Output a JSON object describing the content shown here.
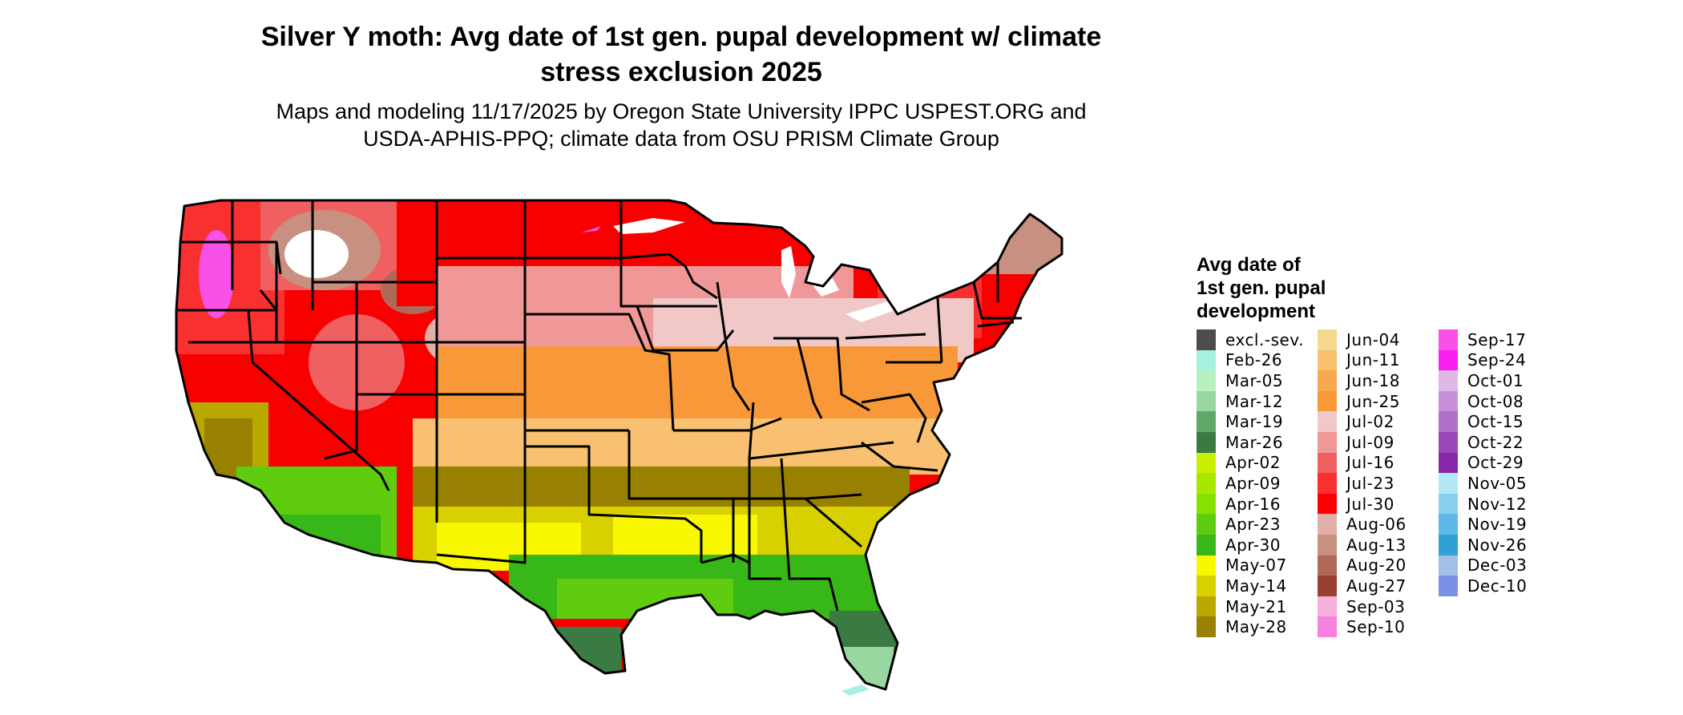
{
  "title": {
    "line1": "Silver Y moth: Avg date of 1st gen. pupal development w/ climate",
    "line2": "stress exclusion 2025"
  },
  "subtitle": {
    "line1": "Maps and modeling 11/17/2025 by Oregon State University IPPC USPEST.ORG and",
    "line2": "USDA-APHIS-PPQ; climate data from OSU PRISM Climate Group"
  },
  "legend": {
    "title_lines": [
      "Avg date of",
      "1st gen. pupal",
      "development"
    ],
    "items": [
      {
        "label": "excl.-sev.",
        "color": "#4d4d4d"
      },
      {
        "label": "Feb-26",
        "color": "#a8f0e0"
      },
      {
        "label": "Mar-05",
        "color": "#b8f0c0"
      },
      {
        "label": "Mar-12",
        "color": "#98d8a0"
      },
      {
        "label": "Mar-19",
        "color": "#60a868"
      },
      {
        "label": "Mar-26",
        "color": "#3c7a44"
      },
      {
        "label": "Apr-02",
        "color": "#c8f000"
      },
      {
        "label": "Apr-09",
        "color": "#a8e800"
      },
      {
        "label": "Apr-16",
        "color": "#88e000"
      },
      {
        "label": "Apr-23",
        "color": "#60cc10"
      },
      {
        "label": "Apr-30",
        "color": "#38b818"
      },
      {
        "label": "May-07",
        "color": "#f8f800"
      },
      {
        "label": "May-14",
        "color": "#d8d000"
      },
      {
        "label": "May-21",
        "color": "#b8a800"
      },
      {
        "label": "May-28",
        "color": "#988000"
      },
      {
        "label": "Jun-04",
        "color": "#f8d890"
      },
      {
        "label": "Jun-11",
        "color": "#f8c070"
      },
      {
        "label": "Jun-18",
        "color": "#f8a850"
      },
      {
        "label": "Jun-25",
        "color": "#f89838"
      },
      {
        "label": "Jul-02",
        "color": "#f0c8c8"
      },
      {
        "label": "Jul-09",
        "color": "#f09898"
      },
      {
        "label": "Jul-16",
        "color": "#f06060"
      },
      {
        "label": "Jul-23",
        "color": "#f83030"
      },
      {
        "label": "Jul-30",
        "color": "#f80000"
      },
      {
        "label": "Aug-06",
        "color": "#e0b0a8"
      },
      {
        "label": "Aug-13",
        "color": "#c89080"
      },
      {
        "label": "Aug-20",
        "color": "#b06858"
      },
      {
        "label": "Aug-27",
        "color": "#984030"
      },
      {
        "label": "Sep-03",
        "color": "#f8b0e0"
      },
      {
        "label": "Sep-10",
        "color": "#f880e0"
      },
      {
        "label": "Sep-17",
        "color": "#f850e8"
      },
      {
        "label": "Sep-24",
        "color": "#f820f0"
      },
      {
        "label": "Oct-01",
        "color": "#e0b8e8"
      },
      {
        "label": "Oct-08",
        "color": "#c890d8"
      },
      {
        "label": "Oct-15",
        "color": "#b070c8"
      },
      {
        "label": "Oct-22",
        "color": "#9848b8"
      },
      {
        "label": "Oct-29",
        "color": "#8828a8"
      },
      {
        "label": "Nov-05",
        "color": "#b0e8f8"
      },
      {
        "label": "Nov-12",
        "color": "#88d0f0"
      },
      {
        "label": "Nov-19",
        "color": "#60b8e8"
      },
      {
        "label": "Nov-26",
        "color": "#30a0d8"
      },
      {
        "label": "Dec-03",
        "color": "#a0c0e8"
      },
      {
        "label": "Dec-10",
        "color": "#7890e8"
      }
    ]
  }
}
